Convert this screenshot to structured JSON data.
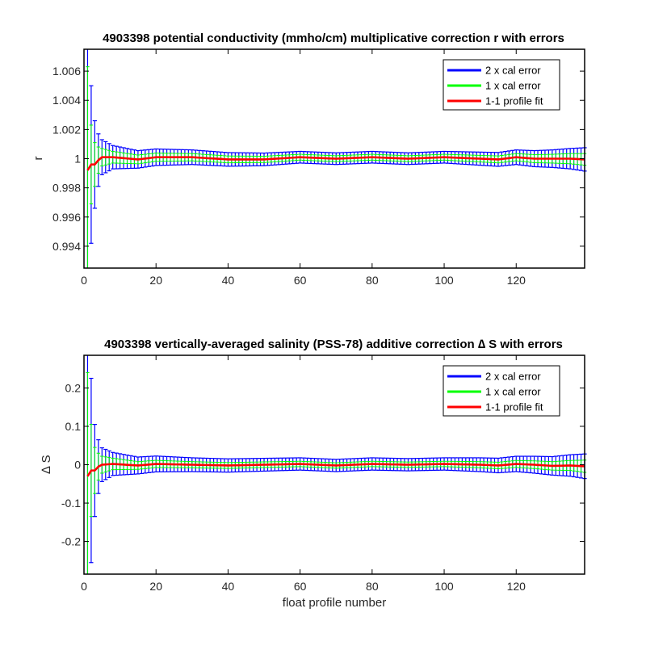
{
  "chart_data": [
    {
      "type": "line",
      "title": "4903398 potential conductivity (mmho/cm) multiplicative correction r with errors",
      "xlabel": "",
      "ylabel": "r",
      "xlim": [
        0,
        139
      ],
      "ylim": [
        0.9925,
        1.0075
      ],
      "xticks": [
        0,
        20,
        40,
        60,
        80,
        100,
        120
      ],
      "yticks": [
        0.994,
        0.996,
        0.998,
        1,
        1.002,
        1.004,
        1.006
      ],
      "ytick_labels": [
        "0.994",
        "0.996",
        "0.998",
        "1",
        "1.002",
        "1.004",
        "1.006"
      ],
      "legend_position": "top-right",
      "fit": [
        [
          1,
          0.9992
        ],
        [
          2,
          0.9996
        ],
        [
          3,
          0.9996
        ],
        [
          4,
          0.9999
        ],
        [
          5,
          1.0001
        ],
        [
          8,
          1.0001
        ],
        [
          15,
          0.99995
        ],
        [
          20,
          1.0001
        ],
        [
          30,
          1.0001
        ],
        [
          40,
          0.99995
        ],
        [
          50,
          0.99995
        ],
        [
          60,
          1.0001
        ],
        [
          70,
          1.0
        ],
        [
          80,
          1.0001
        ],
        [
          90,
          1.0
        ],
        [
          100,
          1.0001
        ],
        [
          110,
          1.0
        ],
        [
          115,
          0.99995
        ],
        [
          120,
          1.0001
        ],
        [
          125,
          1.0
        ],
        [
          130,
          1.0
        ],
        [
          135,
          1.0
        ],
        [
          139,
          0.99995
        ]
      ],
      "err1": [
        [
          1,
          0.0071
        ],
        [
          2,
          0.0027
        ],
        [
          3,
          0.0015
        ],
        [
          4,
          0.0009
        ],
        [
          5,
          0.0006
        ],
        [
          8,
          0.0004
        ],
        [
          15,
          0.0003
        ],
        [
          30,
          0.00025
        ],
        [
          60,
          0.0002
        ],
        [
          100,
          0.0002
        ],
        [
          120,
          0.00025
        ],
        [
          130,
          0.0003
        ],
        [
          135,
          0.00035
        ],
        [
          139,
          0.0004
        ]
      ],
      "err2": [
        [
          1,
          0.0142
        ],
        [
          2,
          0.0054
        ],
        [
          3,
          0.003
        ],
        [
          4,
          0.0018
        ],
        [
          5,
          0.0012
        ],
        [
          8,
          0.0008
        ],
        [
          15,
          0.0006
        ],
        [
          30,
          0.0005
        ],
        [
          60,
          0.0004
        ],
        [
          100,
          0.0004
        ],
        [
          120,
          0.0005
        ],
        [
          130,
          0.0006
        ],
        [
          135,
          0.0007
        ],
        [
          139,
          0.0008
        ]
      ]
    },
    {
      "type": "line",
      "title": "4903398 vertically-averaged salinity (PSS-78) additive correction ∆ S with errors",
      "xlabel": "float profile number",
      "ylabel": "∆ S",
      "xlim": [
        0,
        139
      ],
      "ylim": [
        -0.285,
        0.285
      ],
      "xticks": [
        0,
        20,
        40,
        60,
        80,
        100,
        120
      ],
      "yticks": [
        -0.2,
        -0.1,
        0,
        0.1,
        0.2
      ],
      "ytick_labels": [
        "-0.2",
        "-0.1",
        "0",
        "0.1",
        "0.2"
      ],
      "legend_position": "top-right",
      "fit": [
        [
          1,
          -0.03
        ],
        [
          2,
          -0.015
        ],
        [
          3,
          -0.015
        ],
        [
          4,
          -0.005
        ],
        [
          5,
          0.0
        ],
        [
          8,
          0.002
        ],
        [
          15,
          -0.002
        ],
        [
          20,
          0.002
        ],
        [
          30,
          0.0
        ],
        [
          40,
          -0.002
        ],
        [
          50,
          0.0
        ],
        [
          60,
          0.002
        ],
        [
          70,
          -0.002
        ],
        [
          80,
          0.002
        ],
        [
          90,
          0.0
        ],
        [
          100,
          0.002
        ],
        [
          110,
          0.0
        ],
        [
          115,
          -0.002
        ],
        [
          120,
          0.002
        ],
        [
          125,
          0.0
        ],
        [
          130,
          -0.003
        ],
        [
          135,
          -0.002
        ],
        [
          139,
          -0.004
        ]
      ],
      "err1": [
        [
          1,
          0.27
        ],
        [
          2,
          0.12
        ],
        [
          3,
          0.06
        ],
        [
          4,
          0.035
        ],
        [
          5,
          0.022
        ],
        [
          8,
          0.015
        ],
        [
          15,
          0.01
        ],
        [
          30,
          0.008
        ],
        [
          60,
          0.007
        ],
        [
          100,
          0.007
        ],
        [
          120,
          0.009
        ],
        [
          130,
          0.011
        ],
        [
          135,
          0.013
        ],
        [
          139,
          0.016
        ]
      ],
      "err2": [
        [
          1,
          0.54
        ],
        [
          2,
          0.24
        ],
        [
          3,
          0.12
        ],
        [
          4,
          0.07
        ],
        [
          5,
          0.044
        ],
        [
          8,
          0.03
        ],
        [
          15,
          0.022
        ],
        [
          30,
          0.018
        ],
        [
          60,
          0.016
        ],
        [
          100,
          0.016
        ],
        [
          120,
          0.02
        ],
        [
          130,
          0.024
        ],
        [
          135,
          0.028
        ],
        [
          139,
          0.032
        ]
      ]
    }
  ],
  "legend": [
    {
      "label": "2 x cal error",
      "color": "#0000ff"
    },
    {
      "label": "1 x cal error",
      "color": "#00ff00"
    },
    {
      "label": "1-1 profile fit",
      "color": "#ff0000"
    }
  ]
}
